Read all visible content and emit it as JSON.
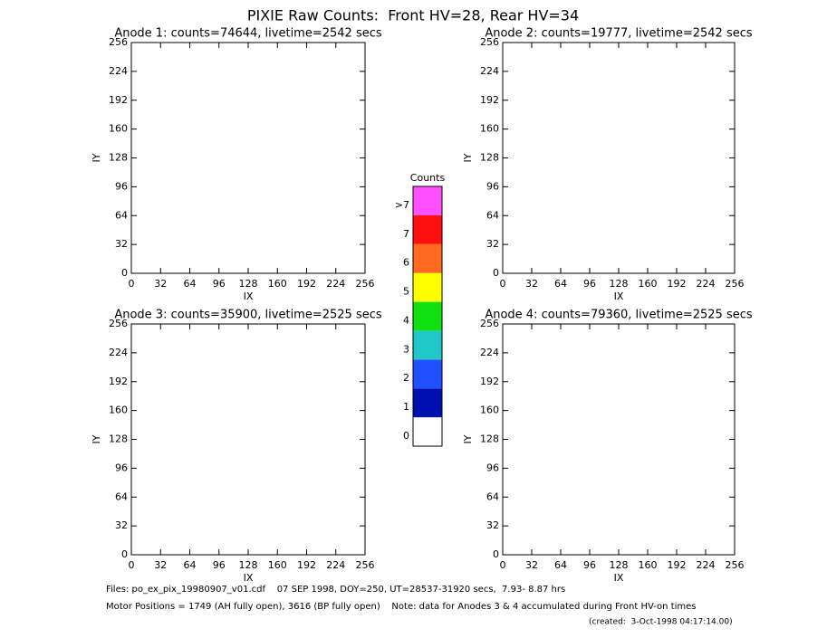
{
  "title": "PIXIE Raw Counts:  Front HV=28, Rear HV=34",
  "chart_data": [
    {
      "type": "image",
      "title": "Anode 1: counts=74644, livetime=2542 secs",
      "x_label": "IX",
      "y_label": "IY",
      "xlim": [
        0,
        256
      ],
      "ylim": [
        0,
        256
      ],
      "xticks": [
        0,
        32,
        64,
        96,
        128,
        160,
        192,
        224,
        256
      ],
      "yticks": [
        0,
        32,
        64,
        96,
        128,
        160,
        192,
        224,
        256
      ]
    },
    {
      "type": "image",
      "title": "Anode 2: counts=19777, livetime=2542 secs",
      "x_label": "IX",
      "y_label": "IY",
      "xlim": [
        0,
        256
      ],
      "ylim": [
        0,
        256
      ],
      "xticks": [
        0,
        32,
        64,
        96,
        128,
        160,
        192,
        224,
        256
      ],
      "yticks": [
        0,
        32,
        64,
        96,
        128,
        160,
        192,
        224,
        256
      ]
    },
    {
      "type": "image",
      "title": "Anode 3: counts=35900, livetime=2525 secs",
      "x_label": "IX",
      "y_label": "IY",
      "xlim": [
        0,
        256
      ],
      "ylim": [
        0,
        256
      ],
      "xticks": [
        0,
        32,
        64,
        96,
        128,
        160,
        192,
        224,
        256
      ],
      "yticks": [
        0,
        32,
        64,
        96,
        128,
        160,
        192,
        224,
        256
      ]
    },
    {
      "type": "image",
      "title": "Anode 4: counts=79360, livetime=2525 secs",
      "x_label": "IX",
      "y_label": "IY",
      "xlim": [
        0,
        256
      ],
      "ylim": [
        0,
        256
      ],
      "xticks": [
        0,
        32,
        64,
        96,
        128,
        160,
        192,
        224,
        256
      ],
      "yticks": [
        0,
        32,
        64,
        96,
        128,
        160,
        192,
        224,
        256
      ]
    },
    {
      "type": "colorbar",
      "title": "Counts",
      "categories": [
        "0",
        "1",
        "2",
        "3",
        "4",
        "5",
        "6",
        "7",
        ">7"
      ],
      "colors": [
        "#ffffff",
        "#0010b0",
        "#2050ff",
        "#20c8c8",
        "#10e010",
        "#ffff00",
        "#ff6a20",
        "#ff1010",
        "#ff50ff"
      ]
    }
  ],
  "footer": {
    "files": "Files: po_ex_pix_19980907_v01.cdf    07 SEP 1998, DOY=250, UT=28537-31920 secs,  7.93- 8.87 hrs",
    "motor": "Motor Positions = 1749 (AH fully open), 3616 (BP fully open)    Note: data for Anodes 3 & 4 accumulated during Front HV-on times",
    "created": "(created:  3-Oct-1998 04:17:14.00)"
  }
}
